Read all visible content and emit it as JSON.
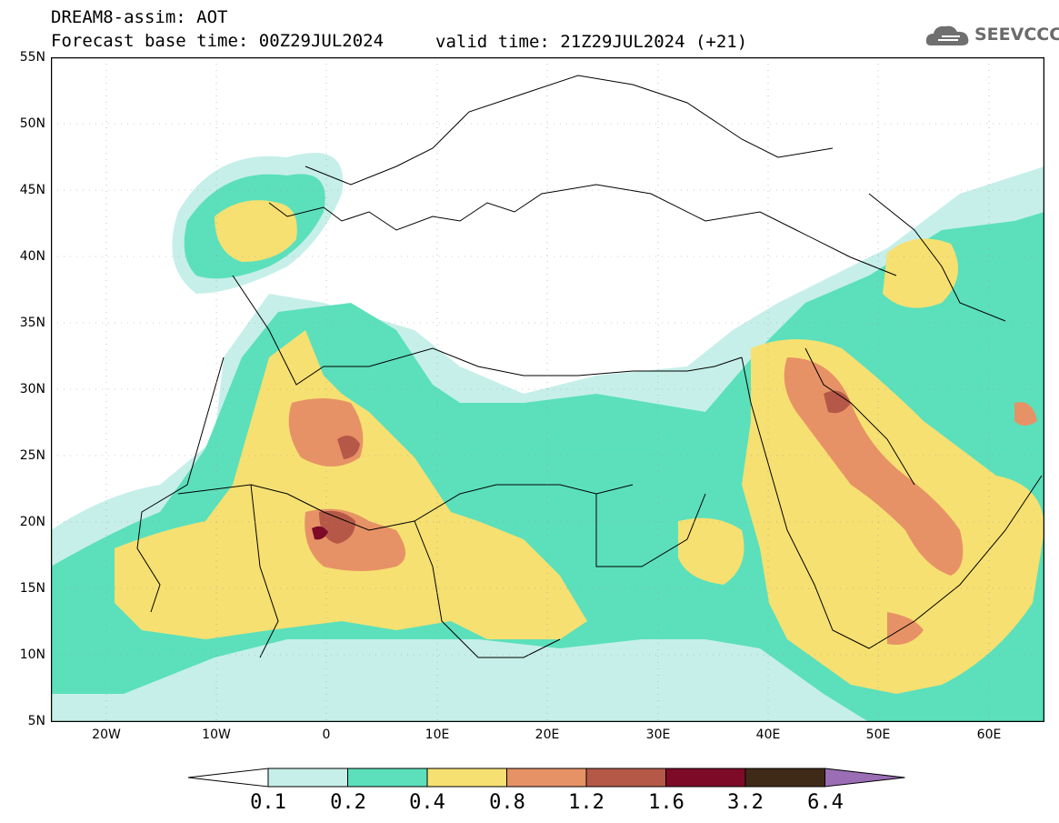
{
  "header": {
    "title_line1": "DREAM8-assim: AOT",
    "title_line2": "Forecast base time: 00Z29JUL2024",
    "valid_time": "valid time: 21Z29JUL2024 (+21)",
    "logo_text": "SEEVCCC",
    "logo_icon": "cloud-icon"
  },
  "axes": {
    "lat_labels": [
      "55N",
      "50N",
      "45N",
      "40N",
      "35N",
      "30N",
      "25N",
      "20N",
      "15N",
      "10N",
      "5N"
    ],
    "lon_labels": [
      "20W",
      "10W",
      "0",
      "10E",
      "20E",
      "30E",
      "40E",
      "50E",
      "60E"
    ]
  },
  "colorbar": {
    "labels": [
      "0.1",
      "0.2",
      "0.4",
      "0.8",
      "1.2",
      "1.6",
      "3.2",
      "6.4"
    ],
    "colors": [
      "#ffffff",
      "#c6efe9",
      "#5be0bb",
      "#f6e071",
      "#e79266",
      "#b65847",
      "#7d0b27",
      "#3f2a17",
      "#9a6db4"
    ]
  },
  "map": {
    "lon_range": [
      -25,
      65
    ],
    "lat_range": [
      5,
      55
    ],
    "field": "AOT",
    "land_color": "#ffffff",
    "border_color": "#000000"
  }
}
